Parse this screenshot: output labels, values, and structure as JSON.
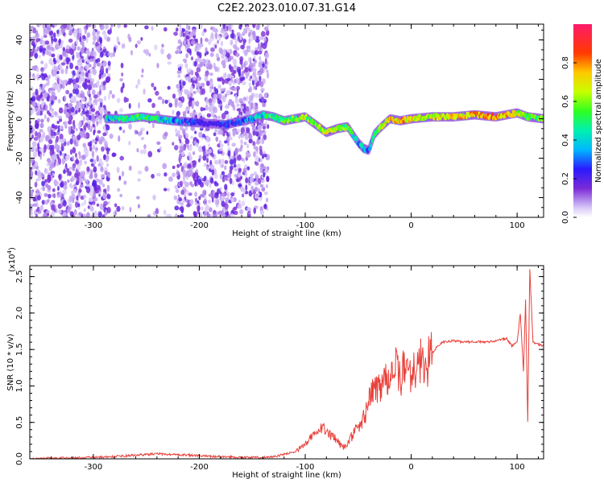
{
  "title": "C2E2.2023.010.07.31.G14",
  "colors": {
    "signal": "#e8403a",
    "spectrum_low": "#7a2bd6",
    "spectrum_high": "#ff1a6a"
  },
  "chart_data": [
    {
      "type": "heatmap",
      "xlabel": "Height of straight line (km)",
      "ylabel": "Frequency (Hz)",
      "xlim": [
        -360,
        125
      ],
      "ylim": [
        -50,
        48
      ],
      "x_ticks": [
        -300,
        -200,
        -100,
        0,
        100
      ],
      "x_tick_labels": [
        "-300",
        "-200",
        "-100",
        "0",
        "100"
      ],
      "y_ticks": [
        -40,
        -20,
        0,
        20,
        40
      ],
      "y_tick_labels": [
        "-40",
        "-20",
        "0",
        "20",
        "40"
      ],
      "colorbar": {
        "label": "Normalized spectral amplitude",
        "range": [
          0.0,
          1.0
        ],
        "ticks": [
          0.0,
          0.2,
          0.4,
          0.6,
          0.8
        ],
        "tick_labels": [
          "0.0",
          "0.2",
          "0.4",
          "0.6",
          "0.8"
        ],
        "colormap": "rainbow (violet → blue → cyan → green → yellow → orange → red → magenta)"
      },
      "noise_regions": [
        {
          "x_from": -360,
          "x_to": -285,
          "density": "high"
        },
        {
          "x_from": -285,
          "x_to": -222,
          "density": "low"
        },
        {
          "x_from": -222,
          "x_to": -135,
          "density": "high"
        }
      ],
      "ridge": {
        "x": [
          -288,
          -270,
          -255,
          -240,
          -225,
          -200,
          -175,
          -150,
          -140,
          -130,
          -120,
          -110,
          -100,
          -90,
          -80,
          -70,
          -60,
          -55,
          -50,
          -45,
          -40,
          -35,
          -30,
          -20,
          -10,
          0,
          20,
          40,
          60,
          80,
          90,
          100,
          110,
          125
        ],
        "frequency": [
          0,
          0,
          1,
          0,
          -1,
          -2,
          -3,
          0,
          2,
          1,
          -1,
          0,
          1,
          -3,
          -7,
          -5,
          -4,
          -8,
          -12,
          -15,
          -16,
          -8,
          -5,
          0,
          -1,
          0,
          1,
          1,
          2,
          1,
          2,
          3,
          1,
          0
        ],
        "amplitude": [
          0.4,
          0.45,
          0.5,
          0.45,
          0.35,
          0.15,
          0.2,
          0.35,
          0.45,
          0.5,
          0.5,
          0.55,
          0.6,
          0.55,
          0.65,
          0.6,
          0.5,
          0.45,
          0.4,
          0.35,
          0.3,
          0.45,
          0.55,
          0.7,
          0.75,
          0.7,
          0.65,
          0.7,
          0.75,
          0.8,
          0.7,
          0.65,
          0.6,
          0.55
        ]
      }
    },
    {
      "type": "line",
      "xlabel": "Height of straight line (km)",
      "ylabel": "SNR (10 * v/v)",
      "y_multiplier_label": "(x10",
      "y_multiplier_exponent": "4",
      "y_multiplier_close": ")",
      "xlim": [
        -360,
        125
      ],
      "ylim": [
        0,
        2.65
      ],
      "x_ticks": [
        -300,
        -200,
        -100,
        0,
        100
      ],
      "x_tick_labels": [
        "-300",
        "-200",
        "-100",
        "0",
        "100"
      ],
      "y_ticks": [
        0.0,
        0.5,
        1.0,
        1.5,
        2.0,
        2.5
      ],
      "y_tick_labels": [
        "0.0",
        "0.5",
        "1.0",
        "1.5",
        "2.0",
        "2.5"
      ],
      "series": [
        {
          "x": [
            -360,
            -340,
            -320,
            -300,
            -280,
            -260,
            -250,
            -240,
            -230,
            -220,
            -210,
            -200,
            -180,
            -160,
            -140,
            -130,
            -120,
            -110,
            -100,
            -95,
            -90,
            -85,
            -80,
            -75,
            -70,
            -65,
            -60,
            -55,
            -50,
            -45,
            -40,
            -35,
            -30,
            -25,
            -20,
            -15,
            -10,
            -5,
            0,
            5,
            10,
            15,
            20,
            25,
            30,
            40,
            50,
            60,
            70,
            80,
            90,
            95,
            100,
            103,
            106,
            108,
            110,
            112,
            115,
            120,
            125
          ],
          "y": [
            0.0,
            0.01,
            0.01,
            0.02,
            0.03,
            0.05,
            0.06,
            0.07,
            0.06,
            0.06,
            0.05,
            0.04,
            0.03,
            0.02,
            0.02,
            0.03,
            0.06,
            0.1,
            0.2,
            0.28,
            0.35,
            0.4,
            0.45,
            0.3,
            0.25,
            0.15,
            0.2,
            0.35,
            0.4,
            0.55,
            0.8,
            0.95,
            1.0,
            1.1,
            1.2,
            1.25,
            1.1,
            1.3,
            1.2,
            1.25,
            1.35,
            1.3,
            1.45,
            1.55,
            1.6,
            1.62,
            1.6,
            1.61,
            1.6,
            1.62,
            1.65,
            1.55,
            1.6,
            2.0,
            1.2,
            2.2,
            0.5,
            2.6,
            1.6,
            1.57,
            1.55
          ]
        }
      ]
    }
  ]
}
